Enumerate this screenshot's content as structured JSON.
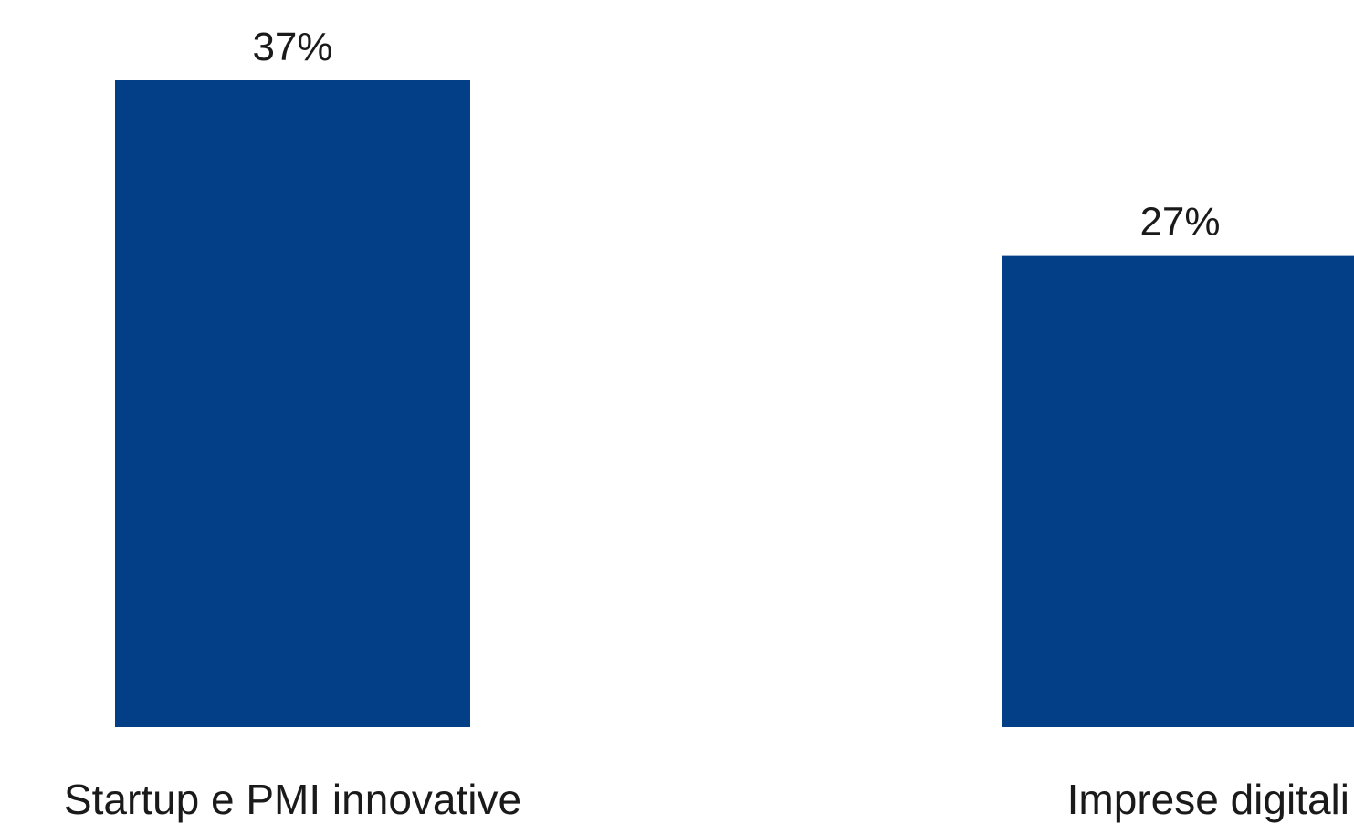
{
  "chart_data": {
    "type": "bar",
    "title": "",
    "xlabel": "",
    "ylabel": "",
    "categories": [
      "Startup e PMI innovative",
      "Imprese digitali"
    ],
    "values": [
      37,
      27
    ],
    "value_labels": [
      "37%",
      "27%"
    ],
    "unit": "%",
    "ylim": [
      0,
      37
    ],
    "grid": false,
    "legend": "none",
    "colors": {
      "bar": "#023f87",
      "text": "#1a1a1a",
      "background": "#ffffff"
    }
  }
}
